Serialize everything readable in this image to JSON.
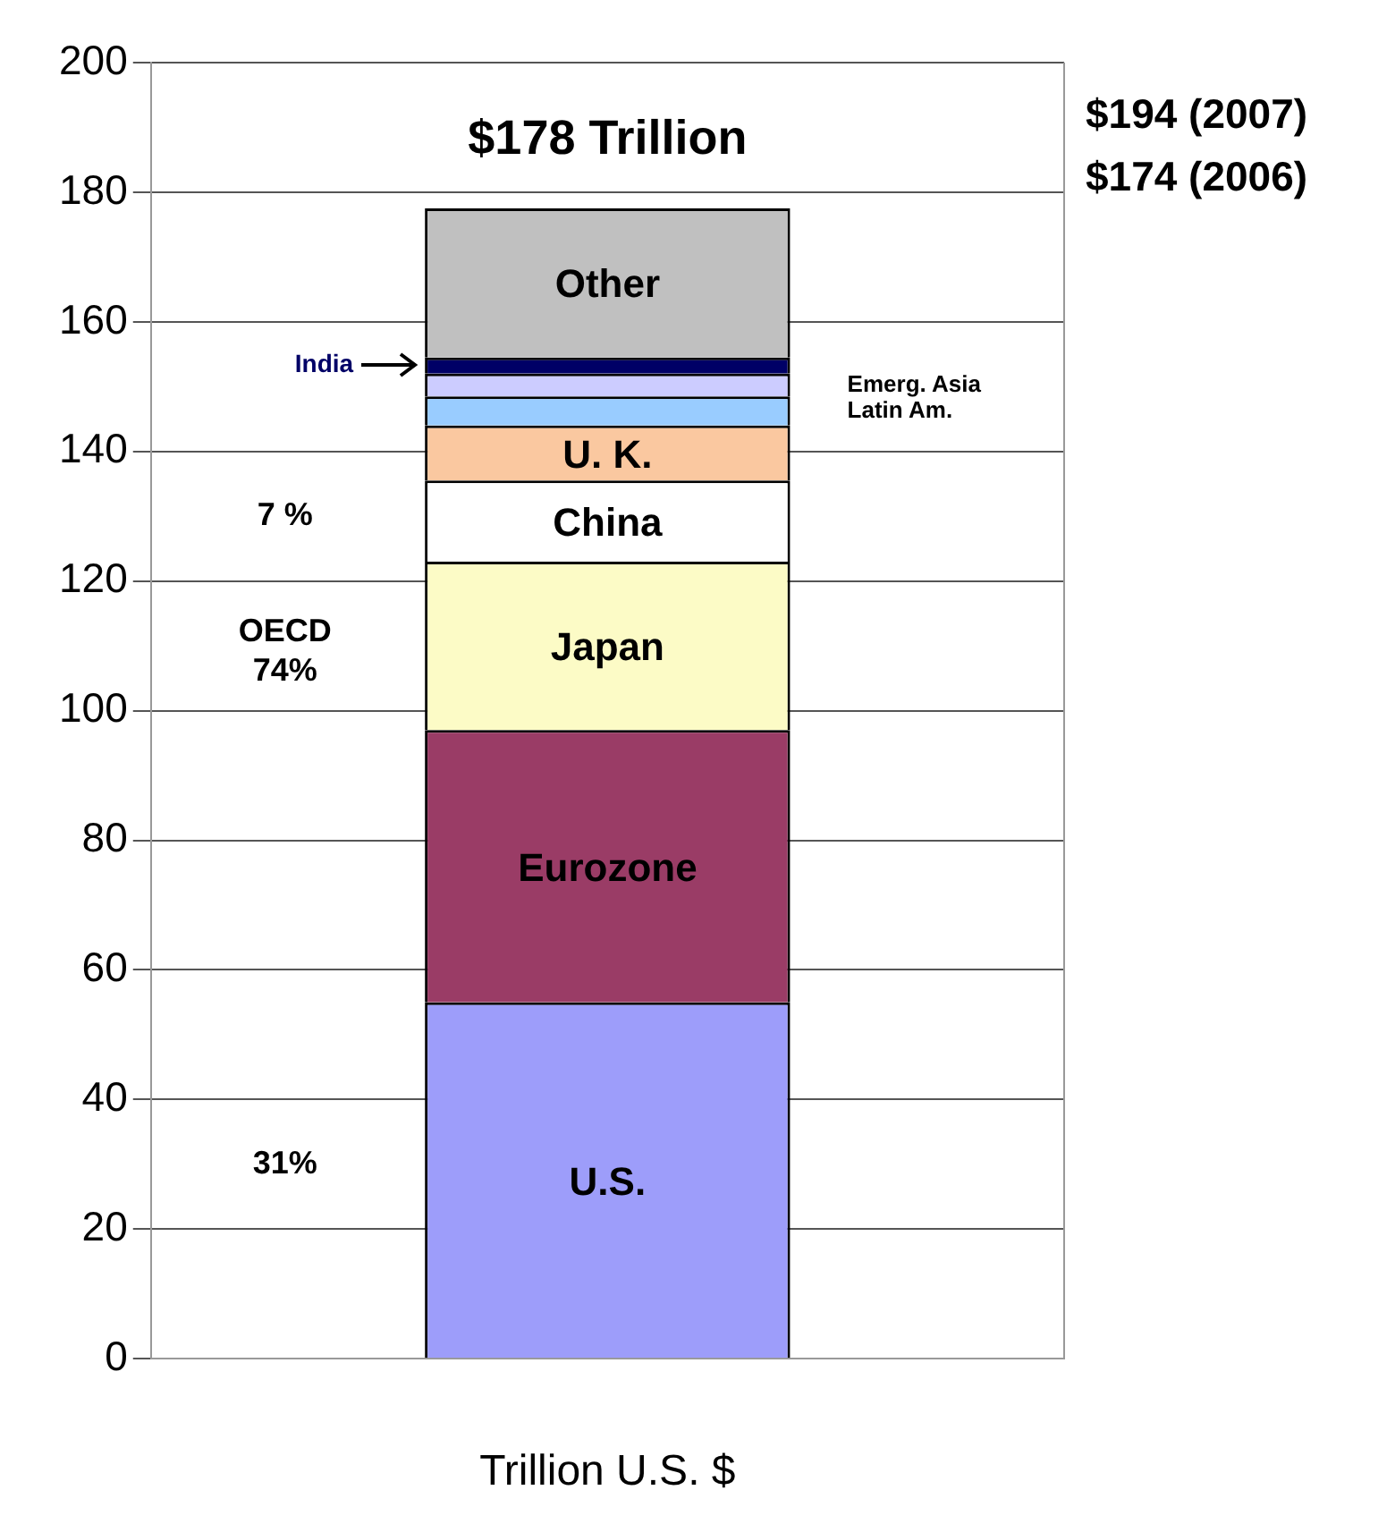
{
  "chart_data": {
    "type": "bar",
    "stacked": true,
    "categories": [
      null
    ],
    "xlabel": "Trillion U.S. $",
    "series": [
      {
        "name": "U.S.",
        "color": "#9d9dfa",
        "values": [
          55
        ]
      },
      {
        "name": "Eurozone",
        "color": "#9a3c66",
        "values": [
          42
        ]
      },
      {
        "name": "Japan",
        "color": "#fcfbc6",
        "values": [
          26
        ]
      },
      {
        "name": "China",
        "color": "#ffffff",
        "values": [
          12.5
        ]
      },
      {
        "name": "U. K.",
        "color": "#fac8a0",
        "values": [
          8.5
        ]
      },
      {
        "name": "Latin Am.",
        "color": "#99ccff",
        "values": [
          4.5
        ]
      },
      {
        "name": "Emerg. Asia",
        "color": "#ccccff",
        "values": [
          3.5
        ]
      },
      {
        "name": "India",
        "color": "#000066",
        "values": [
          2.5
        ]
      },
      {
        "name": "Other",
        "color": "#c0c0c0",
        "values": [
          23
        ]
      }
    ],
    "totals": [
      "$178 Trillion"
    ],
    "annotations": [
      "$194 (2007)",
      "$174 (2006)",
      "7 %",
      "OECD\n74%",
      "31%"
    ],
    "ylim": [
      0,
      200
    ],
    "yticks": [
      0,
      20,
      40,
      60,
      80,
      100,
      120,
      140,
      160,
      180,
      200
    ],
    "grid": "y",
    "legend": false
  }
}
